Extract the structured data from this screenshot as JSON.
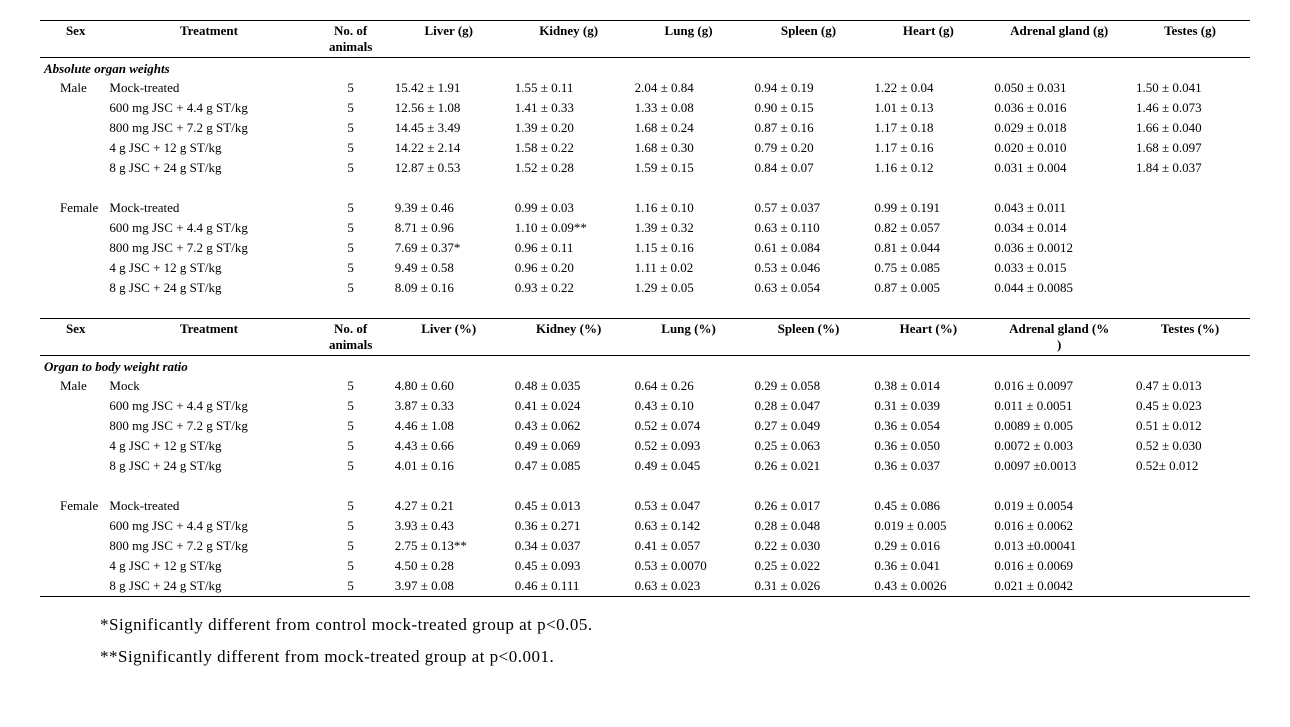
{
  "colors": {
    "text": "#000000",
    "bg": "#ffffff",
    "rule": "#000000"
  },
  "typography": {
    "font_family": "Times New Roman",
    "body_fontsize": 13,
    "footnote_fontsize": 17
  },
  "table1": {
    "headers": [
      "Sex",
      "Treatment",
      "No. of animals",
      "Liver (g)",
      "Kidney (g)",
      "Lung (g)",
      "Spleen (g)",
      "Heart (g)",
      "Adrenal gland (g)",
      "Testes (g)"
    ],
    "section_title": "Absolute organ weights",
    "groups": [
      {
        "sex": "Male",
        "rows": [
          {
            "treat": "Mock-treated",
            "n": "5",
            "vals": [
              "15.42 ± 1.91",
              "1.55 ± 0.11",
              "2.04 ± 0.84",
              "0.94 ± 0.19",
              "1.22 ± 0.04",
              "0.050 ± 0.031",
              "1.50 ± 0.041"
            ]
          },
          {
            "treat": "600 mg JSC + 4.4 g ST/kg",
            "n": "5",
            "vals": [
              "12.56 ± 1.08",
              "1.41 ± 0.33",
              "1.33 ± 0.08",
              "0.90 ± 0.15",
              "1.01 ± 0.13",
              "0.036 ± 0.016",
              "1.46 ± 0.073"
            ]
          },
          {
            "treat": "800 mg JSC + 7.2 g ST/kg",
            "n": "5",
            "vals": [
              "14.45 ± 3.49",
              "1.39 ± 0.20",
              "1.68 ± 0.24",
              "0.87 ± 0.16",
              "1.17 ± 0.18",
              "0.029 ± 0.018",
              "1.66 ± 0.040"
            ]
          },
          {
            "treat": "4 g JSC + 12 g ST/kg",
            "n": "5",
            "vals": [
              "14.22 ± 2.14",
              "1.58 ± 0.22",
              "1.68 ± 0.30",
              "0.79 ± 0.20",
              "1.17 ± 0.16",
              "0.020 ± 0.010",
              "1.68 ± 0.097"
            ]
          },
          {
            "treat": "8 g JSC + 24 g ST/kg",
            "n": "5",
            "vals": [
              "12.87 ± 0.53",
              "1.52 ± 0.28",
              "1.59 ± 0.15",
              "0.84 ± 0.07",
              "1.16 ± 0.12",
              "0.031 ± 0.004",
              "1.84 ± 0.037"
            ]
          }
        ]
      },
      {
        "sex": "Female",
        "rows": [
          {
            "treat": "Mock-treated",
            "n": "5",
            "vals": [
              "9.39 ± 0.46",
              "0.99 ± 0.03",
              "1.16 ± 0.10",
              "0.57 ± 0.037",
              "0.99 ± 0.191",
              "0.043 ± 0.011",
              ""
            ]
          },
          {
            "treat": "600 mg  JSC + 4.4 g ST/kg",
            "n": "5",
            "vals": [
              "8.71 ± 0.96",
              "1.10 ± 0.09**",
              "1.39 ± 0.32",
              "0.63 ± 0.110",
              "0.82 ± 0.057",
              "0.034 ± 0.014",
              ""
            ]
          },
          {
            "treat": "800 mg JSC + 7.2 g ST/kg",
            "n": "5",
            "vals": [
              "7.69 ± 0.37*",
              "0.96 ± 0.11",
              "1.15 ± 0.16",
              "0.61 ± 0.084",
              "0.81 ± 0.044",
              "0.036 ± 0.0012",
              ""
            ]
          },
          {
            "treat": "4 g JSC + 12 g ST/kg",
            "n": "5",
            "vals": [
              "9.49 ± 0.58",
              "0.96 ± 0.20",
              "1.11 ± 0.02",
              "0.53 ± 0.046",
              "0.75 ± 0.085",
              "0.033 ± 0.015",
              ""
            ]
          },
          {
            "treat": "8 g JSC + 24 g ST/kg",
            "n": "5",
            "vals": [
              "8.09 ± 0.16",
              "0.93 ± 0.22",
              "1.29 ± 0.05",
              "0.63 ± 0.054",
              "0.87 ± 0.005",
              "0.044 ± 0.0085",
              ""
            ]
          }
        ]
      }
    ]
  },
  "table2": {
    "headers": [
      "Sex",
      "Treatment",
      "No. of animals",
      "Liver (%)",
      "Kidney (%)",
      "Lung (%)",
      "Spleen (%)",
      "Heart (%)",
      "Adrenal gland (% )",
      "Testes (%)"
    ],
    "section_title": "Organ to body weight ratio",
    "groups": [
      {
        "sex": "Male",
        "rows": [
          {
            "treat": "Mock",
            "n": "5",
            "vals": [
              "4.80 ± 0.60",
              "0.48 ± 0.035",
              "0.64 ± 0.26",
              "0.29 ± 0.058",
              "0.38 ± 0.014",
              "0.016 ± 0.0097",
              "0.47 ± 0.013"
            ]
          },
          {
            "treat": "600 mg JSC + 4.4 g ST/kg",
            "n": "5",
            "vals": [
              "3.87 ± 0.33",
              "0.41 ± 0.024",
              "0.43 ± 0.10",
              "0.28 ± 0.047",
              "0.31 ± 0.039",
              "0.011 ± 0.0051",
              "0.45 ± 0.023"
            ]
          },
          {
            "treat": "800 mg JSC + 7.2 g ST/kg",
            "n": "5",
            "vals": [
              "4.46 ± 1.08",
              "0.43 ± 0.062",
              "0.52 ± 0.074",
              "0.27 ± 0.049",
              "0.36 ± 0.054",
              "0.0089 ± 0.005",
              "0.51 ± 0.012"
            ]
          },
          {
            "treat": "4 g JSC + 12 g ST/kg",
            "n": "5",
            "vals": [
              "4.43 ± 0.66",
              "0.49 ± 0.069",
              "0.52 ± 0.093",
              "0.25 ± 0.063",
              "0.36 ± 0.050",
              "0.0072 ± 0.003",
              "0.52 ± 0.030"
            ]
          },
          {
            "treat": "8 g JSC + 24 g ST/kg",
            "n": "5",
            "vals": [
              "4.01 ± 0.16",
              "0.47 ± 0.085",
              "0.49 ± 0.045",
              "0.26 ± 0.021",
              "0.36 ± 0.037",
              "0.0097 ±0.0013",
              "0.52± 0.012"
            ]
          }
        ]
      },
      {
        "sex": "Female",
        "rows": [
          {
            "treat": "Mock-treated",
            "n": "5",
            "vals": [
              "4.27 ± 0.21",
              "0.45 ± 0.013",
              "0.53 ± 0.047",
              "0.26 ± 0.017",
              "0.45 ± 0.086",
              "0.019 ± 0.0054",
              ""
            ]
          },
          {
            "treat": "600 mg JSC + 4.4 g ST/kg",
            "n": "5",
            "vals": [
              "3.93 ± 0.43",
              "0.36 ± 0.271",
              "0.63 ± 0.142",
              "0.28 ± 0.048",
              "0.019 ± 0.005",
              "0.016 ± 0.0062",
              ""
            ]
          },
          {
            "treat": "800 mg JSC + 7.2 g ST/kg",
            "n": "5",
            "vals": [
              "2.75 ± 0.13**",
              "0.34 ± 0.037",
              "0.41 ± 0.057",
              "0.22 ± 0.030",
              "0.29 ± 0.016",
              "0.013 ±0.00041",
              ""
            ]
          },
          {
            "treat": "4 g JSC + 12 g ST/kg",
            "n": "5",
            "vals": [
              "4.50 ± 0.28",
              "0.45 ± 0.093",
              "0.53 ± 0.0070",
              "0.25 ± 0.022",
              "0.36 ± 0.041",
              "0.016 ± 0.0069",
              ""
            ]
          },
          {
            "treat": "8 g JSC + 24 g ST/kg",
            "n": "5",
            "vals": [
              "3.97 ± 0.08",
              "0.46 ± 0.111",
              "0.63 ± 0.023",
              "0.31 ± 0.026",
              "0.43 ± 0.0026",
              "0.021 ± 0.0042",
              ""
            ]
          }
        ]
      }
    ]
  },
  "footnotes": {
    "a": "*Significantly different from control mock-treated group at p<0.05.",
    "b": "**Significantly different from mock-treated group at p<0.001."
  }
}
